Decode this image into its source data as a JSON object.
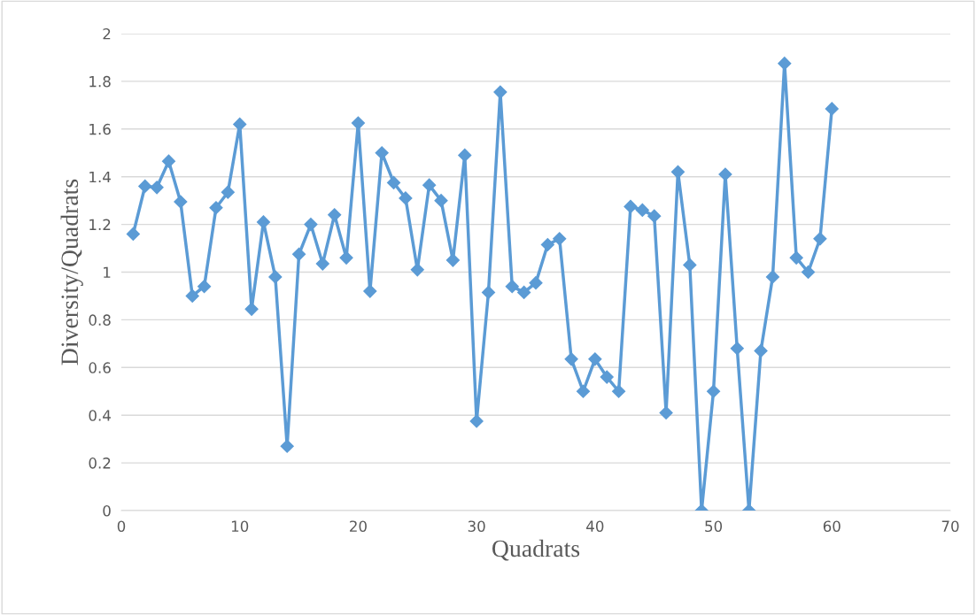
{
  "chart_data": {
    "type": "line",
    "xlabel": "Quadrats",
    "ylabel": "Diversity/Quadrats",
    "x": [
      1,
      2,
      3,
      4,
      5,
      6,
      7,
      8,
      9,
      10,
      11,
      12,
      13,
      14,
      15,
      16,
      17,
      18,
      19,
      20,
      21,
      22,
      23,
      24,
      25,
      26,
      27,
      28,
      29,
      30,
      31,
      32,
      33,
      34,
      35,
      36,
      37,
      38,
      39,
      40,
      41,
      42,
      43,
      44,
      45,
      46,
      47,
      48,
      49,
      50,
      51,
      52,
      53,
      54,
      55,
      56,
      57,
      58,
      59,
      60
    ],
    "series": [
      {
        "color": "#5b9bd5",
        "values": [
          1.16,
          1.36,
          1.355,
          1.465,
          1.295,
          0.9,
          0.94,
          1.27,
          1.335,
          1.62,
          0.845,
          1.21,
          0.98,
          0.27,
          1.075,
          1.2,
          1.035,
          1.24,
          1.06,
          1.625,
          0.92,
          1.5,
          1.375,
          1.31,
          1.01,
          1.365,
          1.3,
          1.05,
          1.49,
          0.375,
          0.915,
          1.755,
          0.94,
          0.915,
          0.955,
          1.115,
          1.14,
          0.635,
          0.5,
          0.635,
          0.56,
          0.5,
          1.275,
          1.26,
          1.235,
          0.41,
          1.42,
          1.03,
          0.0,
          0.5,
          1.41,
          0.68,
          0.0,
          0.67,
          0.98,
          1.875,
          1.06,
          1.0,
          1.14,
          1.685
        ]
      }
    ],
    "xlim": [
      0,
      70
    ],
    "xticks": [
      0,
      10,
      20,
      30,
      40,
      50,
      60,
      70
    ],
    "ylim": [
      0,
      2
    ],
    "yticks": [
      0,
      0.2,
      0.4,
      0.6,
      0.8,
      1,
      1.2,
      1.4,
      1.6,
      1.8,
      2
    ],
    "grid": "y",
    "marker": "diamond",
    "line_style": "solid"
  }
}
